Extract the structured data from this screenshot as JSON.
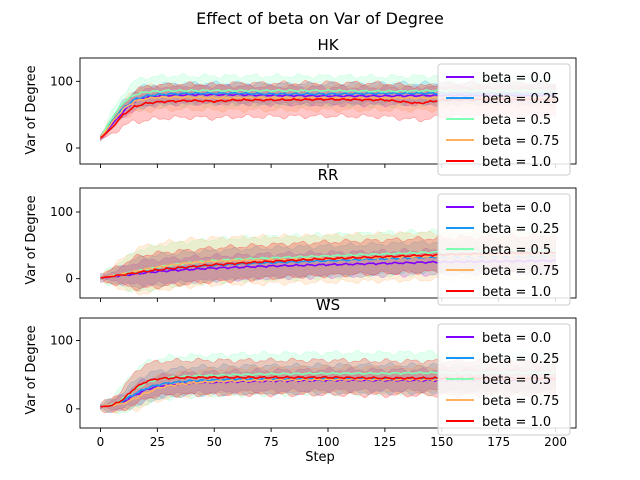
{
  "figure": {
    "suptitle": "Effect of beta on  Var of Degree",
    "xlabel": "Step"
  },
  "colors": {
    "beta = 0.0": "#8000ff",
    "beta = 0.25": "#1996f3",
    "beta = 0.5": "#80ffb4",
    "beta = 0.75": "#ffb360",
    "beta = 1.0": "#ff0000"
  },
  "chart_data": [
    {
      "type": "line",
      "title": "HK",
      "xlabel": "",
      "ylabel": "Var of Degree",
      "xlim": [
        -9,
        209
      ],
      "ylim": [
        -24,
        135
      ],
      "xticks": [
        0,
        25,
        50,
        75,
        100,
        125,
        150,
        175,
        200
      ],
      "show_xticklabels": false,
      "yticks": [
        0,
        100
      ],
      "legend": "upper right",
      "grid": false,
      "series": [
        {
          "name": "beta = 0.0",
          "x": [
            0,
            5,
            10,
            15,
            20,
            25,
            30,
            40,
            50,
            60,
            75,
            100,
            125,
            150,
            175,
            200
          ],
          "y": [
            15,
            35,
            55,
            70,
            76,
            78,
            79,
            80,
            80,
            80,
            79,
            78,
            78,
            79,
            79,
            79
          ],
          "band": 13
        },
        {
          "name": "beta = 0.25",
          "x": [
            0,
            5,
            10,
            15,
            20,
            25,
            30,
            40,
            50,
            60,
            75,
            100,
            125,
            150,
            175,
            200
          ],
          "y": [
            15,
            40,
            60,
            73,
            78,
            80,
            81,
            82,
            82,
            82,
            81,
            81,
            82,
            82,
            82,
            81
          ],
          "band": 15
        },
        {
          "name": "beta = 0.5",
          "x": [
            0,
            5,
            10,
            15,
            20,
            25,
            30,
            40,
            50,
            60,
            75,
            100,
            125,
            150,
            175,
            200
          ],
          "y": [
            15,
            45,
            68,
            80,
            84,
            85,
            86,
            86,
            86,
            86,
            86,
            86,
            85,
            86,
            86,
            86
          ],
          "band": 22
        },
        {
          "name": "beta = 0.75",
          "x": [
            0,
            5,
            10,
            15,
            20,
            25,
            30,
            40,
            50,
            60,
            75,
            100,
            125,
            150,
            175,
            200
          ],
          "y": [
            15,
            38,
            58,
            70,
            74,
            76,
            76,
            76,
            75,
            75,
            75,
            75,
            75,
            75,
            75,
            75
          ],
          "band": 18
        },
        {
          "name": "beta = 1.0",
          "x": [
            0,
            5,
            10,
            15,
            20,
            25,
            30,
            40,
            50,
            60,
            75,
            100,
            125,
            140,
            150,
            175,
            200
          ],
          "y": [
            15,
            30,
            50,
            62,
            67,
            69,
            70,
            71,
            70,
            72,
            72,
            73,
            72,
            67,
            72,
            73,
            72
          ],
          "band": 25
        }
      ]
    },
    {
      "type": "line",
      "title": "RR",
      "xlabel": "",
      "ylabel": "Var of Degree",
      "xlim": [
        -9,
        209
      ],
      "ylim": [
        -29,
        136
      ],
      "xticks": [
        0,
        25,
        50,
        75,
        100,
        125,
        150,
        175,
        200
      ],
      "show_xticklabels": false,
      "yticks": [
        0,
        100
      ],
      "legend": "upper right",
      "grid": false,
      "series": [
        {
          "name": "beta = 0.0",
          "x": [
            0,
            10,
            20,
            30,
            40,
            50,
            60,
            75,
            100,
            125,
            150,
            175,
            200
          ],
          "y": [
            1,
            5,
            9,
            12,
            14,
            16,
            17,
            19,
            21,
            23,
            25,
            26,
            27
          ],
          "band": 18
        },
        {
          "name": "beta = 0.25",
          "x": [
            0,
            10,
            20,
            30,
            40,
            50,
            60,
            75,
            100,
            125,
            150,
            175,
            200
          ],
          "y": [
            1,
            6,
            11,
            15,
            18,
            20,
            22,
            24,
            27,
            30,
            33,
            34,
            35
          ],
          "band": 22
        },
        {
          "name": "beta = 0.5",
          "x": [
            0,
            10,
            20,
            30,
            40,
            50,
            60,
            75,
            100,
            125,
            150,
            175,
            200
          ],
          "y": [
            1,
            7,
            14,
            20,
            24,
            27,
            29,
            31,
            34,
            37,
            40,
            42,
            43
          ],
          "band": 32
        },
        {
          "name": "beta = 0.75",
          "x": [
            0,
            10,
            20,
            30,
            40,
            50,
            60,
            75,
            100,
            125,
            150,
            175,
            200
          ],
          "y": [
            1,
            7,
            14,
            20,
            24,
            26,
            27,
            28,
            30,
            32,
            34,
            35,
            36
          ],
          "band": 35
        },
        {
          "name": "beta = 1.0",
          "x": [
            0,
            10,
            20,
            30,
            40,
            50,
            60,
            75,
            100,
            125,
            150,
            175,
            200
          ],
          "y": [
            1,
            6,
            11,
            15,
            18,
            21,
            23,
            26,
            30,
            33,
            36,
            38,
            39
          ],
          "band": 25
        }
      ]
    },
    {
      "type": "line",
      "title": "WS",
      "xlabel": "Step",
      "ylabel": "Var of Degree",
      "xlim": [
        -9,
        209
      ],
      "ylim": [
        -28,
        133
      ],
      "xticks": [
        0,
        25,
        50,
        75,
        100,
        125,
        150,
        175,
        200
      ],
      "show_xticklabels": true,
      "yticks": [
        0,
        100
      ],
      "legend": "upper right",
      "grid": false,
      "series": [
        {
          "name": "beta = 0.0",
          "x": [
            0,
            5,
            10,
            15,
            20,
            25,
            30,
            40,
            50,
            60,
            75,
            100,
            125,
            150,
            175,
            200
          ],
          "y": [
            3,
            5,
            10,
            20,
            28,
            33,
            35,
            38,
            39,
            40,
            41,
            42,
            42,
            42,
            42,
            42
          ],
          "band": 15
        },
        {
          "name": "beta = 0.25",
          "x": [
            0,
            5,
            10,
            15,
            20,
            25,
            30,
            40,
            50,
            60,
            75,
            100,
            125,
            150,
            175,
            200
          ],
          "y": [
            3,
            5,
            12,
            22,
            30,
            35,
            38,
            41,
            42,
            43,
            43,
            44,
            44,
            44,
            44,
            44
          ],
          "band": 20
        },
        {
          "name": "beta = 0.5",
          "x": [
            0,
            5,
            10,
            15,
            20,
            25,
            30,
            40,
            50,
            60,
            75,
            100,
            125,
            150,
            175,
            200
          ],
          "y": [
            3,
            6,
            15,
            28,
            38,
            43,
            46,
            48,
            49,
            50,
            51,
            52,
            52,
            53,
            53,
            53
          ],
          "band": 30
        },
        {
          "name": "beta = 0.75",
          "x": [
            0,
            5,
            10,
            15,
            20,
            25,
            30,
            40,
            50,
            60,
            75,
            100,
            125,
            150,
            175,
            200
          ],
          "y": [
            3,
            5,
            8,
            15,
            23,
            30,
            34,
            38,
            40,
            41,
            42,
            43,
            43,
            43,
            43,
            43
          ],
          "band": 18
        },
        {
          "name": "beta = 1.0",
          "x": [
            0,
            5,
            10,
            15,
            20,
            25,
            30,
            40,
            50,
            60,
            75,
            100,
            125,
            150,
            175,
            200
          ],
          "y": [
            3,
            5,
            14,
            30,
            40,
            44,
            45,
            46,
            46,
            46,
            46,
            46,
            45,
            45,
            45,
            45
          ],
          "band": 25
        }
      ]
    }
  ]
}
